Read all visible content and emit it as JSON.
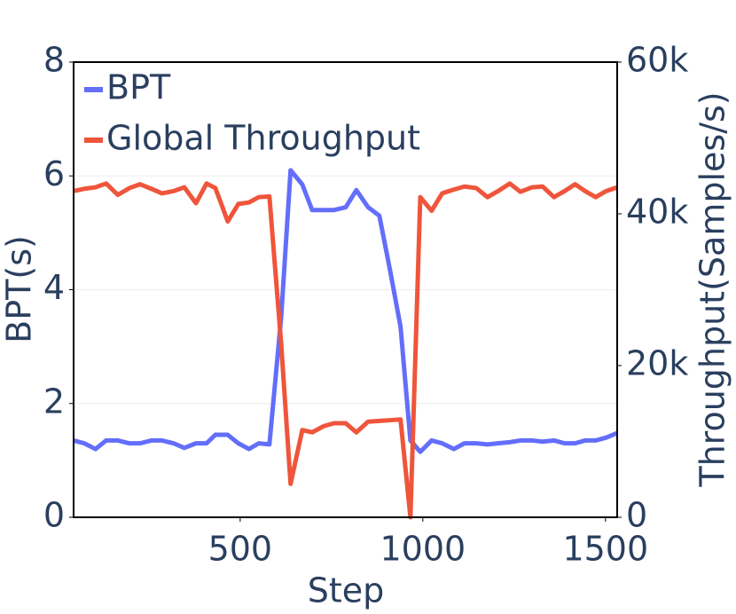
{
  "chart_data": {
    "type": "line",
    "x_label": "Step",
    "y_label": "BPT(s)",
    "y2_label": "Throughput(Samples/s)",
    "x": [
      44,
      73,
      104,
      133,
      165,
      197,
      226,
      257,
      286,
      318,
      347,
      379,
      408,
      432,
      466,
      495,
      524,
      551,
      580,
      612,
      638,
      670,
      697,
      728,
      757,
      789,
      818,
      850,
      881,
      910,
      939,
      966,
      993,
      1024,
      1053,
      1085,
      1114,
      1146,
      1177,
      1206,
      1238,
      1267,
      1299,
      1328,
      1359,
      1388,
      1417,
      1444,
      1473,
      1502,
      1532
    ],
    "xlim": [
      44,
      1532
    ],
    "xticks": [
      500,
      1000,
      1500
    ],
    "ylim": [
      0,
      8
    ],
    "yticks": [
      0,
      2,
      4,
      6,
      8
    ],
    "y2lim": [
      0,
      60000
    ],
    "y2ticks": [
      {
        "value": 0,
        "label": "0"
      },
      {
        "value": 20000,
        "label": "20k"
      },
      {
        "value": 40000,
        "label": "40k"
      },
      {
        "value": 60000,
        "label": "60k"
      }
    ],
    "grid": true,
    "legend": "upper-left",
    "series": [
      {
        "name": "BPT",
        "color": "#636efa",
        "values": [
          1.35,
          1.3,
          1.2,
          1.35,
          1.35,
          1.3,
          1.3,
          1.35,
          1.35,
          1.3,
          1.22,
          1.3,
          1.3,
          1.45,
          1.45,
          1.3,
          1.2,
          1.3,
          1.28,
          3.5,
          6.1,
          5.85,
          5.4,
          5.4,
          5.4,
          5.45,
          5.75,
          5.45,
          5.3,
          4.35,
          3.35,
          1.35,
          1.15,
          1.35,
          1.3,
          1.2,
          1.3,
          1.3,
          1.28,
          1.3,
          1.32,
          1.35,
          1.35,
          1.33,
          1.35,
          1.3,
          1.3,
          1.35,
          1.35,
          1.4,
          1.48
        ]
      },
      {
        "name": "Global Throughput",
        "color": "#ef553b",
        "axis": "y2",
        "values": [
          43000,
          43300,
          43500,
          44000,
          42500,
          43400,
          43900,
          43300,
          42700,
          43000,
          43500,
          41400,
          44000,
          43400,
          39000,
          41300,
          41500,
          42200,
          42300,
          23000,
          4400,
          11500,
          11200,
          12000,
          12400,
          12400,
          11200,
          12600,
          12700,
          12800,
          12900,
          0,
          42200,
          40400,
          42700,
          43200,
          43600,
          43400,
          42200,
          43000,
          44000,
          42900,
          43500,
          43600,
          42200,
          43000,
          43900,
          43000,
          42200,
          43000,
          43500
        ]
      }
    ]
  }
}
